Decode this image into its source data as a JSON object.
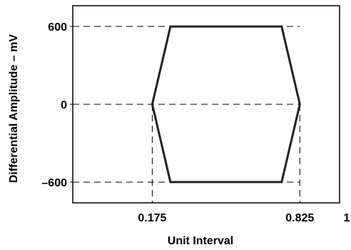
{
  "chart_data": {
    "type": "line",
    "xlabel": "Unit Interval",
    "ylabel": "Differential Amplitude – mV",
    "x_ticks": [
      "0.175",
      "0.825",
      "1"
    ],
    "y_ticks": [
      "600",
      "0",
      "–600"
    ],
    "x_tick_values": [
      0.175,
      0.825,
      1
    ],
    "y_tick_values": [
      600,
      0,
      -600
    ],
    "xlim": [
      -0.175,
      1.0
    ],
    "ylim": [
      -760,
      760
    ],
    "grid": false,
    "series": [
      {
        "points": [
          [
            0.175,
            0
          ],
          [
            0.255,
            600
          ],
          [
            0.745,
            600
          ],
          [
            0.825,
            0
          ],
          [
            0.745,
            -600
          ],
          [
            0.255,
            -600
          ],
          [
            0.175,
            0
          ]
        ],
        "color": "#222222"
      }
    ],
    "guide_lines": {
      "horizontal_at": [
        600,
        0,
        -600
      ],
      "vertical_at": [
        0.175,
        0.825
      ],
      "style": "dashed"
    }
  }
}
